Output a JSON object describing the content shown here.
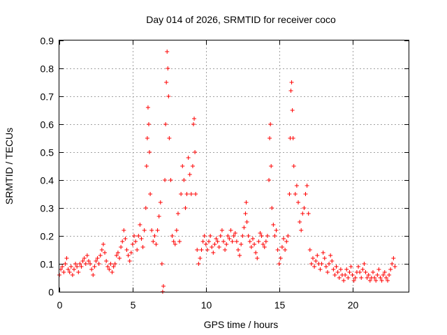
{
  "chart_data": {
    "type": "scatter",
    "title": "Day 014 of 2026, SRMTID for receiver coco",
    "xlabel": "GPS time / hours",
    "ylabel": "SRMTID / TECUs",
    "xlim": [
      0,
      23.83
    ],
    "ylim": [
      0,
      0.9
    ],
    "xticks": [
      0,
      5,
      10,
      15,
      20
    ],
    "yticks": [
      0,
      0.1,
      0.2,
      0.3,
      0.4,
      0.5,
      0.6,
      0.7,
      0.8,
      0.9
    ],
    "xtick_labels": [
      "0",
      "5",
      "10",
      "15",
      "20"
    ],
    "ytick_labels": [
      "0",
      "0.1",
      "0.2",
      "0.3",
      "0.4",
      "0.5",
      "0.6",
      "0.7",
      "0.8",
      "0.9"
    ],
    "grid": true,
    "marker": "+",
    "series": [
      {
        "name": "SRMTID",
        "color": "#ff0000",
        "points": [
          [
            0.0,
            0.06
          ],
          [
            0.1,
            0.08
          ],
          [
            0.2,
            0.09
          ],
          [
            0.3,
            0.07
          ],
          [
            0.4,
            0.1
          ],
          [
            0.5,
            0.12
          ],
          [
            0.6,
            0.08
          ],
          [
            0.7,
            0.07
          ],
          [
            0.8,
            0.09
          ],
          [
            0.9,
            0.06
          ],
          [
            1.0,
            0.08
          ],
          [
            1.1,
            0.1
          ],
          [
            1.2,
            0.09
          ],
          [
            1.3,
            0.07
          ],
          [
            1.4,
            0.1
          ],
          [
            1.5,
            0.09
          ],
          [
            1.6,
            0.11
          ],
          [
            1.7,
            0.12
          ],
          [
            1.8,
            0.1
          ],
          [
            1.9,
            0.13
          ],
          [
            2.0,
            0.11
          ],
          [
            2.1,
            0.1
          ],
          [
            2.2,
            0.08
          ],
          [
            2.3,
            0.06
          ],
          [
            2.4,
            0.09
          ],
          [
            2.5,
            0.11
          ],
          [
            2.6,
            0.12
          ],
          [
            2.7,
            0.1
          ],
          [
            2.8,
            0.13
          ],
          [
            2.9,
            0.15
          ],
          [
            3.0,
            0.17
          ],
          [
            3.1,
            0.14
          ],
          [
            3.2,
            0.11
          ],
          [
            3.3,
            0.09
          ],
          [
            3.4,
            0.08
          ],
          [
            3.5,
            0.1
          ],
          [
            3.6,
            0.07
          ],
          [
            3.7,
            0.09
          ],
          [
            3.8,
            0.1
          ],
          [
            3.9,
            0.13
          ],
          [
            4.0,
            0.14
          ],
          [
            4.1,
            0.12
          ],
          [
            4.2,
            0.16
          ],
          [
            4.3,
            0.18
          ],
          [
            4.4,
            0.22
          ],
          [
            4.5,
            0.19
          ],
          [
            4.6,
            0.15
          ],
          [
            4.7,
            0.13
          ],
          [
            4.8,
            0.11
          ],
          [
            4.9,
            0.14
          ],
          [
            5.0,
            0.17
          ],
          [
            5.1,
            0.2
          ],
          [
            5.2,
            0.18
          ],
          [
            5.3,
            0.15
          ],
          [
            5.4,
            0.2
          ],
          [
            5.5,
            0.24
          ],
          [
            5.6,
            0.19
          ],
          [
            5.7,
            0.16
          ],
          [
            5.8,
            0.22
          ],
          [
            5.9,
            0.3
          ],
          [
            5.95,
            0.45
          ],
          [
            6.0,
            0.55
          ],
          [
            6.05,
            0.66
          ],
          [
            6.1,
            0.6
          ],
          [
            6.15,
            0.5
          ],
          [
            6.2,
            0.35
          ],
          [
            6.3,
            0.22
          ],
          [
            6.4,
            0.18
          ],
          [
            6.5,
            0.2
          ],
          [
            6.6,
            0.17
          ],
          [
            6.7,
            0.22
          ],
          [
            6.8,
            0.27
          ],
          [
            6.9,
            0.32
          ],
          [
            7.0,
            0.1
          ],
          [
            7.05,
            0.0
          ],
          [
            7.1,
            0.02
          ],
          [
            7.2,
            0.4
          ],
          [
            7.25,
            0.6
          ],
          [
            7.3,
            0.75
          ],
          [
            7.35,
            0.86
          ],
          [
            7.4,
            0.8
          ],
          [
            7.45,
            0.7
          ],
          [
            7.5,
            0.55
          ],
          [
            7.6,
            0.4
          ],
          [
            7.7,
            0.2
          ],
          [
            7.8,
            0.18
          ],
          [
            7.9,
            0.17
          ],
          [
            8.0,
            0.22
          ],
          [
            8.1,
            0.28
          ],
          [
            8.2,
            0.18
          ],
          [
            8.3,
            0.35
          ],
          [
            8.4,
            0.45
          ],
          [
            8.5,
            0.4
          ],
          [
            8.6,
            0.3
          ],
          [
            8.7,
            0.35
          ],
          [
            8.8,
            0.48
          ],
          [
            8.9,
            0.42
          ],
          [
            9.0,
            0.35
          ],
          [
            9.1,
            0.45
          ],
          [
            9.15,
            0.6
          ],
          [
            9.2,
            0.62
          ],
          [
            9.25,
            0.5
          ],
          [
            9.3,
            0.35
          ],
          [
            9.4,
            0.15
          ],
          [
            9.5,
            0.1
          ],
          [
            9.6,
            0.12
          ],
          [
            9.7,
            0.15
          ],
          [
            9.8,
            0.18
          ],
          [
            9.9,
            0.2
          ],
          [
            10.0,
            0.17
          ],
          [
            10.1,
            0.15
          ],
          [
            10.2,
            0.18
          ],
          [
            10.3,
            0.2
          ],
          [
            10.4,
            0.16
          ],
          [
            10.5,
            0.14
          ],
          [
            10.6,
            0.17
          ],
          [
            10.7,
            0.19
          ],
          [
            10.8,
            0.18
          ],
          [
            10.9,
            0.16
          ],
          [
            11.0,
            0.2
          ],
          [
            11.1,
            0.22
          ],
          [
            11.2,
            0.18
          ],
          [
            11.3,
            0.15
          ],
          [
            11.4,
            0.17
          ],
          [
            11.5,
            0.2
          ],
          [
            11.6,
            0.19
          ],
          [
            11.7,
            0.22
          ],
          [
            11.8,
            0.18
          ],
          [
            11.9,
            0.2
          ],
          [
            12.0,
            0.21
          ],
          [
            12.1,
            0.18
          ],
          [
            12.2,
            0.15
          ],
          [
            12.3,
            0.13
          ],
          [
            12.4,
            0.17
          ],
          [
            12.5,
            0.2
          ],
          [
            12.6,
            0.23
          ],
          [
            12.7,
            0.28
          ],
          [
            12.75,
            0.32
          ],
          [
            12.8,
            0.25
          ],
          [
            12.9,
            0.2
          ],
          [
            13.0,
            0.18
          ],
          [
            13.1,
            0.16
          ],
          [
            13.2,
            0.19
          ],
          [
            13.3,
            0.17
          ],
          [
            13.4,
            0.14
          ],
          [
            13.5,
            0.12
          ],
          [
            13.6,
            0.18
          ],
          [
            13.7,
            0.21
          ],
          [
            13.8,
            0.2
          ],
          [
            13.9,
            0.17
          ],
          [
            14.0,
            0.16
          ],
          [
            14.1,
            0.18
          ],
          [
            14.2,
            0.2
          ],
          [
            14.3,
            0.4
          ],
          [
            14.35,
            0.55
          ],
          [
            14.4,
            0.6
          ],
          [
            14.45,
            0.45
          ],
          [
            14.5,
            0.3
          ],
          [
            14.6,
            0.24
          ],
          [
            14.7,
            0.2
          ],
          [
            14.8,
            0.22
          ],
          [
            14.9,
            0.15
          ],
          [
            15.0,
            0.1
          ],
          [
            15.1,
            0.12
          ],
          [
            15.2,
            0.16
          ],
          [
            15.3,
            0.19
          ],
          [
            15.4,
            0.15
          ],
          [
            15.5,
            0.18
          ],
          [
            15.6,
            0.2
          ],
          [
            15.7,
            0.35
          ],
          [
            15.75,
            0.55
          ],
          [
            15.8,
            0.72
          ],
          [
            15.85,
            0.75
          ],
          [
            15.9,
            0.65
          ],
          [
            15.95,
            0.55
          ],
          [
            16.0,
            0.45
          ],
          [
            16.1,
            0.35
          ],
          [
            16.2,
            0.38
          ],
          [
            16.3,
            0.32
          ],
          [
            16.4,
            0.25
          ],
          [
            16.5,
            0.22
          ],
          [
            16.6,
            0.28
          ],
          [
            16.7,
            0.3
          ],
          [
            16.8,
            0.35
          ],
          [
            16.9,
            0.38
          ],
          [
            17.0,
            0.28
          ],
          [
            17.1,
            0.15
          ],
          [
            17.2,
            0.1
          ],
          [
            17.3,
            0.12
          ],
          [
            17.4,
            0.09
          ],
          [
            17.5,
            0.11
          ],
          [
            17.6,
            0.13
          ],
          [
            17.7,
            0.1
          ],
          [
            17.8,
            0.08
          ],
          [
            17.9,
            0.1
          ],
          [
            18.0,
            0.14
          ],
          [
            18.1,
            0.12
          ],
          [
            18.2,
            0.09
          ],
          [
            18.3,
            0.07
          ],
          [
            18.4,
            0.1
          ],
          [
            18.5,
            0.13
          ],
          [
            18.6,
            0.11
          ],
          [
            18.7,
            0.08
          ],
          [
            18.8,
            0.06
          ],
          [
            18.9,
            0.09
          ],
          [
            19.0,
            0.07
          ],
          [
            19.1,
            0.05
          ],
          [
            19.2,
            0.08
          ],
          [
            19.3,
            0.06
          ],
          [
            19.4,
            0.04
          ],
          [
            19.5,
            0.06
          ],
          [
            19.6,
            0.08
          ],
          [
            19.7,
            0.05
          ],
          [
            19.8,
            0.07
          ],
          [
            19.9,
            0.09
          ],
          [
            20.0,
            0.06
          ],
          [
            20.1,
            0.04
          ],
          [
            20.2,
            0.05
          ],
          [
            20.3,
            0.07
          ],
          [
            20.4,
            0.09
          ],
          [
            20.5,
            0.07
          ],
          [
            20.6,
            0.05
          ],
          [
            20.7,
            0.08
          ],
          [
            20.8,
            0.1
          ],
          [
            20.9,
            0.07
          ],
          [
            21.0,
            0.05
          ],
          [
            21.1,
            0.06
          ],
          [
            21.2,
            0.04
          ],
          [
            21.3,
            0.05
          ],
          [
            21.4,
            0.07
          ],
          [
            21.5,
            0.05
          ],
          [
            21.6,
            0.04
          ],
          [
            21.7,
            0.06
          ],
          [
            21.8,
            0.08
          ],
          [
            21.9,
            0.05
          ],
          [
            22.0,
            0.04
          ],
          [
            22.1,
            0.06
          ],
          [
            22.2,
            0.07
          ],
          [
            22.3,
            0.05
          ],
          [
            22.4,
            0.04
          ],
          [
            22.5,
            0.06
          ],
          [
            22.6,
            0.08
          ],
          [
            22.7,
            0.1
          ],
          [
            22.8,
            0.12
          ],
          [
            22.9,
            0.09
          ]
        ]
      }
    ]
  }
}
